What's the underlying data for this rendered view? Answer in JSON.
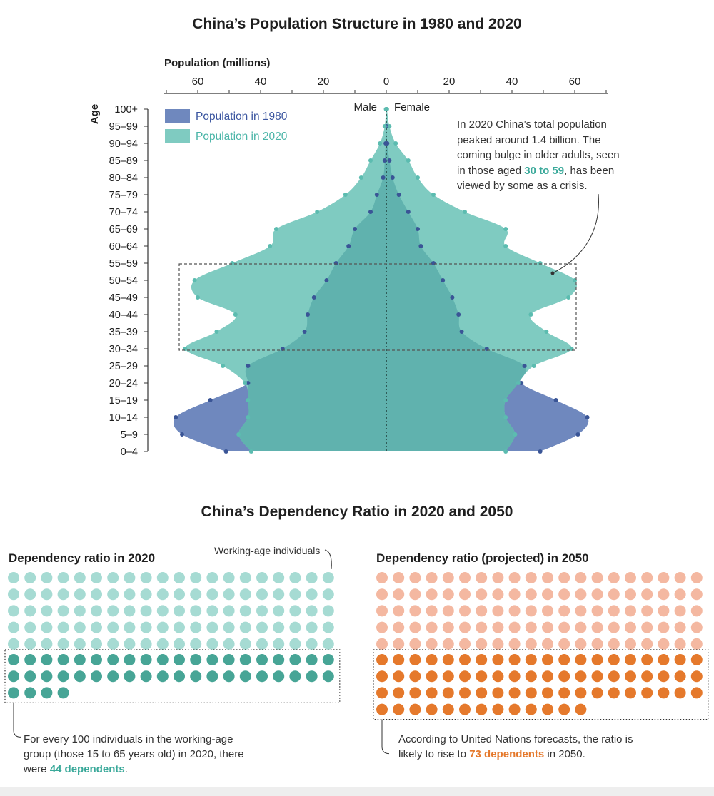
{
  "chart_data": [
    {
      "type": "area",
      "title": "China’s Population Structure in 1980 and 2020",
      "xlabel": "Population (millions)",
      "ylabel": "Age",
      "x_ticks": [
        60,
        40,
        20,
        0,
        20,
        40,
        60
      ],
      "xlim": [
        -70,
        70
      ],
      "side_labels": {
        "left": "Male",
        "right": "Female"
      },
      "categories": [
        "0–4",
        "5–9",
        "10–14",
        "15–19",
        "20–24",
        "25–29",
        "30–34",
        "35–39",
        "40–44",
        "45–49",
        "50–54",
        "55–59",
        "60–64",
        "65–69",
        "70–74",
        "75–79",
        "80–84",
        "85–89",
        "90–94",
        "95–99",
        "100+"
      ],
      "series": [
        {
          "name": "Population in 1980",
          "color": "#6f88be",
          "male": [
            51,
            65,
            67,
            56,
            44,
            44,
            33,
            26,
            25,
            23,
            19,
            16,
            12,
            10,
            5,
            3,
            1,
            0.5,
            0.2,
            0.05,
            0
          ],
          "female": [
            49,
            61,
            64,
            54,
            43,
            44,
            32,
            24,
            23,
            21,
            18,
            15,
            11,
            10,
            7,
            4,
            2,
            1,
            0.3,
            0.05,
            0
          ]
        },
        {
          "name": "Population in 2020",
          "color": "#7fcbc1",
          "male": [
            43,
            47,
            44,
            44,
            45,
            52,
            64,
            54,
            48,
            60,
            61,
            49,
            37,
            35,
            22,
            13,
            8,
            5,
            2,
            0.5,
            0.1
          ],
          "female": [
            38,
            41,
            38,
            38,
            42,
            47,
            59,
            51,
            46,
            58,
            60,
            49,
            38,
            38,
            25,
            15,
            10,
            7,
            3,
            1,
            0.2
          ]
        }
      ],
      "legend_position": "top-left",
      "annotation": {
        "pre": "In 2020 China’s total population peaked around 1.4 billion. The coming bulge in older adults, seen in those aged ",
        "highlight": "30 to 59",
        "post": ", has been viewed by some as a crisis."
      }
    },
    {
      "type": "waffle",
      "title": "China’s  Dependency Ratio in 2020 and 2050",
      "panels": [
        {
          "label": "Dependency ratio in 2020",
          "working_age": 100,
          "dependents": 44,
          "light_color": "#a6dbd3",
          "dark_color": "#47a596",
          "callout": "Working-age individuals",
          "note_pre": "For every 100 individuals in the working-age group (those 15 to 65 years old) in 2020, there were ",
          "note_highlight": "44 dependents",
          "note_post": "."
        },
        {
          "label": "Dependency ratio (projected) in 2050",
          "working_age": 100,
          "dependents": 73,
          "light_color": "#f4b8a1",
          "dark_color": "#e5792c",
          "note_pre": "According to United Nations forecasts, the ratio is likely to rise to ",
          "note_highlight": "73 dependents",
          "note_post": " in 2050."
        }
      ]
    }
  ]
}
